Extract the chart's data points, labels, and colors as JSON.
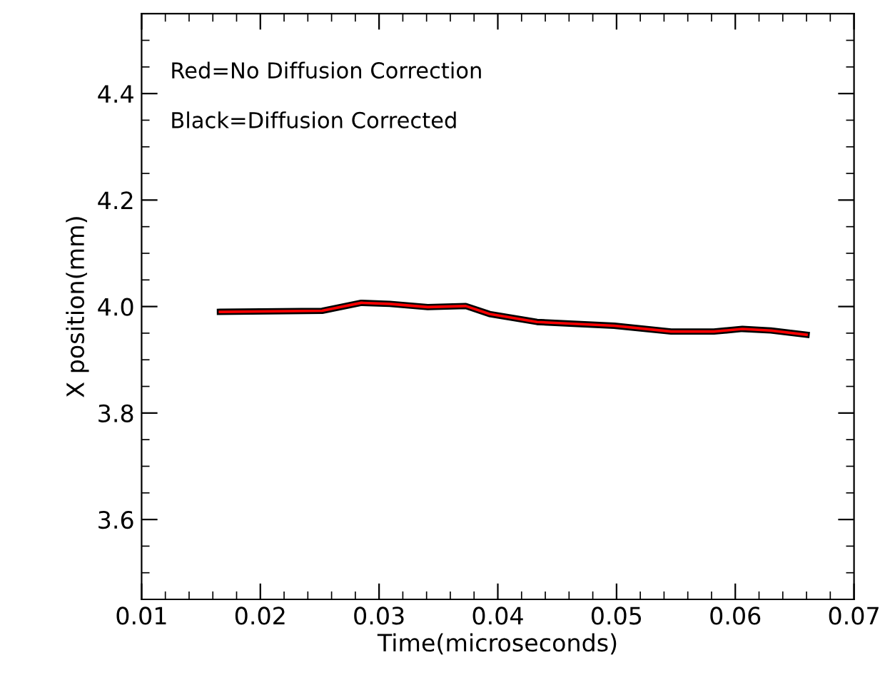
{
  "chart_data": {
    "type": "line",
    "xlabel": "Time(microseconds)",
    "ylabel": "X position(mm)",
    "annotations": [
      "Red=No Diffusion Correction",
      "Black=Diffusion Corrected"
    ],
    "x": [
      0.0166,
      0.0252,
      0.0285,
      0.0309,
      0.0341,
      0.0373,
      0.0393,
      0.0433,
      0.0498,
      0.0546,
      0.0582,
      0.0606,
      0.063,
      0.066
    ],
    "series": [
      {
        "color": "#000000",
        "values": [
          3.99,
          3.992,
          4.007,
          4.005,
          3.999,
          4.001,
          3.986,
          3.971,
          3.964,
          3.953,
          3.953,
          3.958,
          3.955,
          3.947
        ]
      },
      {
        "color": "#ff0000",
        "values": [
          3.99,
          3.992,
          4.007,
          4.005,
          3.999,
          4.001,
          3.986,
          3.971,
          3.964,
          3.953,
          3.953,
          3.958,
          3.955,
          3.947
        ]
      }
    ],
    "xlim": [
      0.01,
      0.07
    ],
    "xticks": [
      0.01,
      0.02,
      0.03,
      0.04,
      0.05,
      0.06,
      0.07
    ],
    "ylim": [
      3.45,
      4.55
    ],
    "yticks": [
      3.6,
      3.8,
      {
        "value": 4.0,
        "label": "4.0"
      },
      4.2,
      4.4
    ],
    "grid": false,
    "legend": false,
    "marker": "none",
    "line_style": "solid"
  }
}
